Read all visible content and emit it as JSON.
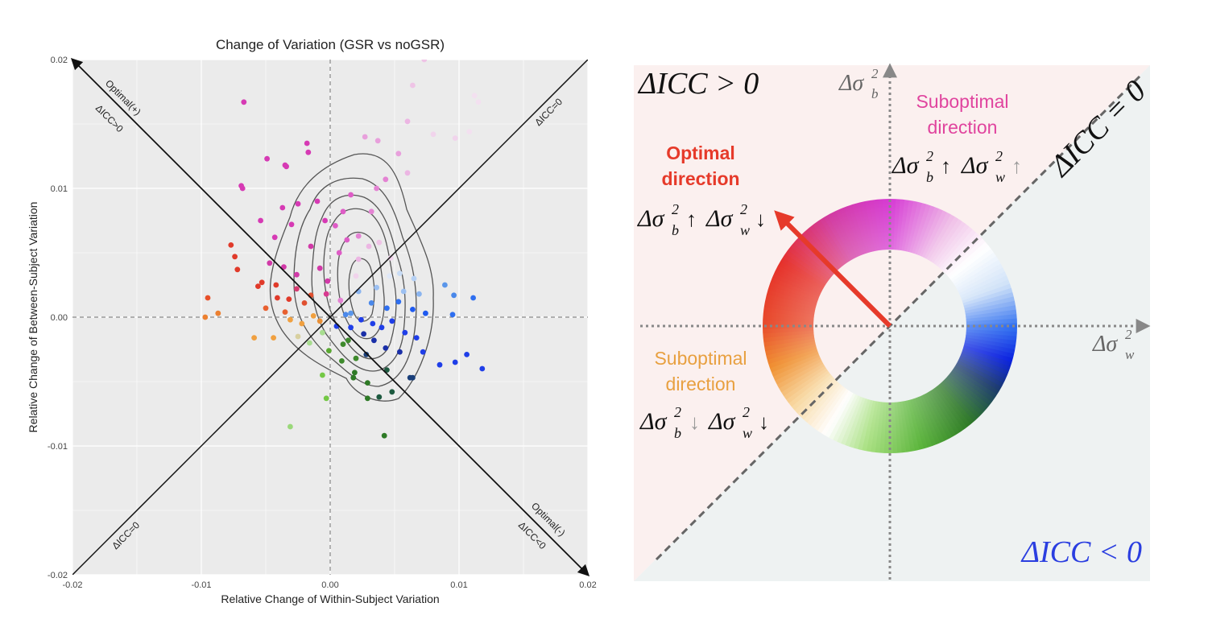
{
  "chart_data": [
    {
      "type": "scatter",
      "title": "Change of Variation (GSR vs noGSR)",
      "xlabel": "Relative Change of Within-Subject Variation",
      "ylabel": "Relative Change of Between-Subject Variation",
      "xlim": [
        -0.02,
        0.02
      ],
      "ylim": [
        -0.02,
        0.02
      ],
      "x_ticks": [
        "-0.02",
        "-0.01",
        "0.00",
        "0.01",
        "0.02"
      ],
      "y_ticks": [
        "-0.02",
        "-0.01",
        "0.00",
        "0.01",
        "0.02"
      ],
      "grid": true,
      "reference_line_labels": {
        "optimal_plus": "Optimal(+)",
        "dicc_pos": "ΔICC>0",
        "optimal_minus": "Optimal(-)",
        "dicc_neg": "ΔICC<0",
        "dicc_zero_top": "ΔICC=0",
        "dicc_zero_bottom": "ΔICC=0"
      },
      "points": [
        {
          "x": -0.0067,
          "y": 0.0167,
          "color": "#d63ab4"
        },
        {
          "x": -0.0069,
          "y": 0.0102,
          "color": "#d63ab4"
        },
        {
          "x": -0.0068,
          "y": 0.01,
          "color": "#d63ab4"
        },
        {
          "x": -0.0049,
          "y": 0.0123,
          "color": "#d63ab4"
        },
        {
          "x": -0.0035,
          "y": 0.0118,
          "color": "#d63ab4"
        },
        {
          "x": -0.0034,
          "y": 0.0117,
          "color": "#d63ab4"
        },
        {
          "x": -0.0018,
          "y": 0.0135,
          "color": "#d63ab4"
        },
        {
          "x": -0.0017,
          "y": 0.0128,
          "color": "#d63ab4"
        },
        {
          "x": -0.0054,
          "y": 0.0075,
          "color": "#d63ab4"
        },
        {
          "x": -0.0037,
          "y": 0.0085,
          "color": "#d63ab4"
        },
        {
          "x": -0.0025,
          "y": 0.0088,
          "color": "#d63ab4"
        },
        {
          "x": -0.001,
          "y": 0.009,
          "color": "#d63ab4"
        },
        {
          "x": -0.0043,
          "y": 0.0062,
          "color": "#d63ab4"
        },
        {
          "x": -0.003,
          "y": 0.0072,
          "color": "#d63ab4"
        },
        {
          "x": -0.0004,
          "y": 0.0075,
          "color": "#d63ab4"
        },
        {
          "x": -0.0047,
          "y": 0.0042,
          "color": "#d23aa8"
        },
        {
          "x": -0.0036,
          "y": 0.0039,
          "color": "#d23aa8"
        },
        {
          "x": -0.0026,
          "y": 0.0033,
          "color": "#d23aa8"
        },
        {
          "x": -0.0015,
          "y": 0.0055,
          "color": "#d23aa8"
        },
        {
          "x": -0.0008,
          "y": 0.0038,
          "color": "#d23aa8"
        },
        {
          "x": -0.0002,
          "y": 0.0028,
          "color": "#d23aa8"
        },
        {
          "x": 0.0004,
          "y": 0.0071,
          "color": "#de5cc6"
        },
        {
          "x": 0.001,
          "y": 0.0082,
          "color": "#de5cc6"
        },
        {
          "x": 0.0016,
          "y": 0.0095,
          "color": "#de5cc6"
        },
        {
          "x": 0.0013,
          "y": 0.006,
          "color": "#de5cc6"
        },
        {
          "x": 0.0007,
          "y": 0.005,
          "color": "#de5cc6"
        },
        {
          "x": 0.0022,
          "y": 0.0063,
          "color": "#e483d3"
        },
        {
          "x": 0.0032,
          "y": 0.0082,
          "color": "#e483d3"
        },
        {
          "x": 0.0036,
          "y": 0.01,
          "color": "#e483d3"
        },
        {
          "x": 0.0043,
          "y": 0.0107,
          "color": "#e483d3"
        },
        {
          "x": 0.0027,
          "y": 0.014,
          "color": "#e8a0dc"
        },
        {
          "x": 0.0037,
          "y": 0.0137,
          "color": "#e8a0dc"
        },
        {
          "x": 0.0053,
          "y": 0.0127,
          "color": "#e8a0dc"
        },
        {
          "x": 0.006,
          "y": 0.0112,
          "color": "#ecb6e3"
        },
        {
          "x": 0.006,
          "y": 0.0152,
          "color": "#ecb6e3"
        },
        {
          "x": 0.0064,
          "y": 0.018,
          "color": "#efc4e6"
        },
        {
          "x": 0.0073,
          "y": 0.02,
          "color": "#efc4e6"
        },
        {
          "x": 0.008,
          "y": 0.0142,
          "color": "#f1d4ec"
        },
        {
          "x": 0.0097,
          "y": 0.0139,
          "color": "#f1d4ec"
        },
        {
          "x": 0.0108,
          "y": 0.0144,
          "color": "#f3e0f0"
        },
        {
          "x": 0.0112,
          "y": 0.0172,
          "color": "#f3e0f0"
        },
        {
          "x": 0.0115,
          "y": 0.0167,
          "color": "#f3e0f0"
        },
        {
          "x": 0.0022,
          "y": 0.0045,
          "color": "#ecb6e3"
        },
        {
          "x": 0.003,
          "y": 0.0055,
          "color": "#ecb6e3"
        },
        {
          "x": 0.0038,
          "y": 0.0058,
          "color": "#efc4e6"
        },
        {
          "x": 0.0047,
          "y": 0.0046,
          "color": "#f1d4ec"
        },
        {
          "x": 0.002,
          "y": 0.0032,
          "color": "#f1d4ec"
        },
        {
          "x": 0.0046,
          "y": 0.0032,
          "color": "#dfe8f8"
        },
        {
          "x": 0.0054,
          "y": 0.0034,
          "color": "#c8dcf6"
        },
        {
          "x": 0.0065,
          "y": 0.003,
          "color": "#b5d0f4"
        },
        {
          "x": 0.0057,
          "y": 0.002,
          "color": "#9cc0f2"
        },
        {
          "x": 0.0069,
          "y": 0.0018,
          "color": "#8ab4ef"
        },
        {
          "x": 0.0089,
          "y": 0.0025,
          "color": "#5a96ea"
        },
        {
          "x": 0.0096,
          "y": 0.0017,
          "color": "#4a88ea"
        },
        {
          "x": 0.0111,
          "y": 0.0015,
          "color": "#2f6ff0"
        },
        {
          "x": 0.0095,
          "y": 0.0002,
          "color": "#2f6ff0"
        },
        {
          "x": 0.0032,
          "y": 0.0011,
          "color": "#4a88ea"
        },
        {
          "x": 0.0044,
          "y": 0.0007,
          "color": "#2f6ff0"
        },
        {
          "x": 0.0053,
          "y": 0.0012,
          "color": "#2f6ff0"
        },
        {
          "x": 0.0064,
          "y": 0.0006,
          "color": "#1f5af0"
        },
        {
          "x": 0.0074,
          "y": 0.0003,
          "color": "#1f5af0"
        },
        {
          "x": 0.0016,
          "y": 0.0003,
          "color": "#5a96ea"
        },
        {
          "x": 0.0024,
          "y": -0.0002,
          "color": "#1f3ee8"
        },
        {
          "x": 0.0033,
          "y": -0.0005,
          "color": "#1f3ee8"
        },
        {
          "x": 0.004,
          "y": -0.0008,
          "color": "#1f3ee8"
        },
        {
          "x": 0.0048,
          "y": -0.0003,
          "color": "#1f3ee8"
        },
        {
          "x": 0.0058,
          "y": -0.0012,
          "color": "#1f3ee8"
        },
        {
          "x": 0.0067,
          "y": -0.0016,
          "color": "#1f3ee8"
        },
        {
          "x": 0.0072,
          "y": -0.0027,
          "color": "#1f3ee8"
        },
        {
          "x": 0.0085,
          "y": -0.0037,
          "color": "#1f3ee8"
        },
        {
          "x": 0.0097,
          "y": -0.0035,
          "color": "#1f3ee8"
        },
        {
          "x": 0.0106,
          "y": -0.0029,
          "color": "#1f3ee8"
        },
        {
          "x": 0.0118,
          "y": -0.004,
          "color": "#1f3ee8"
        },
        {
          "x": 0.0034,
          "y": -0.0018,
          "color": "#1a2fa8"
        },
        {
          "x": 0.0043,
          "y": -0.0024,
          "color": "#1a2fa8"
        },
        {
          "x": 0.0054,
          "y": -0.0027,
          "color": "#1a2fa8"
        },
        {
          "x": 0.0062,
          "y": -0.0047,
          "color": "#1a3f7a"
        },
        {
          "x": 0.0064,
          "y": -0.0047,
          "color": "#1a3f7a"
        },
        {
          "x": 0.0028,
          "y": -0.0029,
          "color": "#1a3f7a"
        },
        {
          "x": 0.0044,
          "y": -0.0041,
          "color": "#1e5a40"
        },
        {
          "x": 0.0048,
          "y": -0.0058,
          "color": "#1e5a40"
        },
        {
          "x": 0.0038,
          "y": -0.0062,
          "color": "#1e5a40"
        },
        {
          "x": 0.0029,
          "y": -0.0051,
          "color": "#2e7a26"
        },
        {
          "x": 0.0018,
          "y": -0.0047,
          "color": "#2e7a26"
        },
        {
          "x": 0.0029,
          "y": -0.0063,
          "color": "#2e7a26"
        },
        {
          "x": 0.0042,
          "y": -0.0092,
          "color": "#2e7a26"
        },
        {
          "x": 0.001,
          "y": -0.0021,
          "color": "#3e8a2c"
        },
        {
          "x": 0.0009,
          "y": -0.0034,
          "color": "#3e8a2c"
        },
        {
          "x": 0.002,
          "y": -0.0032,
          "color": "#3e8a2c"
        },
        {
          "x": 0.0014,
          "y": -0.0018,
          "color": "#3e8a2c"
        },
        {
          "x": -0.0001,
          "y": -0.0026,
          "color": "#5aa832"
        },
        {
          "x": -0.0006,
          "y": -0.0045,
          "color": "#74c845"
        },
        {
          "x": -0.0003,
          "y": -0.0063,
          "color": "#74c845"
        },
        {
          "x": -0.0031,
          "y": -0.0085,
          "color": "#9ad87a"
        },
        {
          "x": -0.0016,
          "y": -0.002,
          "color": "#a8dd90"
        },
        {
          "x": -0.0006,
          "y": -0.0012,
          "color": "#a8dd90"
        },
        {
          "x": -0.0025,
          "y": -0.0015,
          "color": "#d8d0a0"
        },
        {
          "x": -0.0059,
          "y": -0.0016,
          "color": "#f0a040"
        },
        {
          "x": -0.0044,
          "y": -0.0016,
          "color": "#f0a040"
        },
        {
          "x": -0.0031,
          "y": -0.0002,
          "color": "#f0a040"
        },
        {
          "x": -0.0022,
          "y": -0.0005,
          "color": "#f0a040"
        },
        {
          "x": -0.0013,
          "y": 0.0001,
          "color": "#f0a040"
        },
        {
          "x": -0.0008,
          "y": -0.0003,
          "color": "#e89038"
        },
        {
          "x": -0.0097,
          "y": 0.0,
          "color": "#ec8030"
        },
        {
          "x": -0.0087,
          "y": 0.0003,
          "color": "#ec8030"
        },
        {
          "x": -0.0095,
          "y": 0.0015,
          "color": "#e8502a"
        },
        {
          "x": -0.0077,
          "y": 0.0056,
          "color": "#e03a2a"
        },
        {
          "x": -0.0074,
          "y": 0.0047,
          "color": "#e03a2a"
        },
        {
          "x": -0.0072,
          "y": 0.0037,
          "color": "#e03a2a"
        },
        {
          "x": -0.0056,
          "y": 0.0024,
          "color": "#e03a2a"
        },
        {
          "x": -0.0053,
          "y": 0.0027,
          "color": "#e03a2a"
        },
        {
          "x": -0.0041,
          "y": 0.0015,
          "color": "#e03a2a"
        },
        {
          "x": -0.0032,
          "y": 0.0014,
          "color": "#e03a2a"
        },
        {
          "x": -0.0042,
          "y": 0.0025,
          "color": "#e03a2a"
        },
        {
          "x": -0.0026,
          "y": 0.0022,
          "color": "#d83a70"
        },
        {
          "x": -0.002,
          "y": 0.0011,
          "color": "#e05030"
        },
        {
          "x": -0.0015,
          "y": 0.0017,
          "color": "#e05030"
        },
        {
          "x": -0.005,
          "y": 0.0007,
          "color": "#e86030"
        },
        {
          "x": -0.0035,
          "y": 0.0004,
          "color": "#e86030"
        },
        {
          "x": -0.0003,
          "y": 0.0018,
          "color": "#d83a90"
        },
        {
          "x": 0.0008,
          "y": 0.0013,
          "color": "#e483d3"
        },
        {
          "x": 0.0012,
          "y": 0.0002,
          "color": "#4a88ea"
        },
        {
          "x": 0.0022,
          "y": 0.002,
          "color": "#8ab4ef"
        },
        {
          "x": 0.0036,
          "y": 0.0023,
          "color": "#9cc0f2"
        },
        {
          "x": 0.0005,
          "y": -0.0007,
          "color": "#1f3ee8"
        },
        {
          "x": 0.0016,
          "y": -0.0008,
          "color": "#1f3ee8"
        },
        {
          "x": 0.0026,
          "y": -0.0013,
          "color": "#1a2fa8"
        },
        {
          "x": 0.0019,
          "y": -0.0043,
          "color": "#2e7a26"
        }
      ]
    },
    {
      "type": "diagram",
      "labels": {
        "dicc_gt": "ΔICC > 0",
        "dicc_lt": "ΔICC < 0",
        "dicc_eq": "ΔICC = 0",
        "optimal_1": "Optimal",
        "optimal_2": "direction",
        "sub_top_1": "Suboptimal",
        "sub_top_2": "direction",
        "sub_bottom_1": "Suboptimal",
        "sub_bottom_2": "direction",
        "axis_b": "Δσ",
        "axis_w": "Δσ",
        "sub_b": "b",
        "sub_w": "w",
        "sup_2": "2",
        "arrow_up": "↑",
        "arrow_down": "↓"
      },
      "colors": {
        "optimal": "#e63a2a",
        "sub_top": "#e0449e",
        "sub_bottom": "#e8a040",
        "dicc_lt": "#2a3ee0",
        "upper_region": "#fbf0ef",
        "lower_region": "#eef2f2"
      }
    }
  ]
}
